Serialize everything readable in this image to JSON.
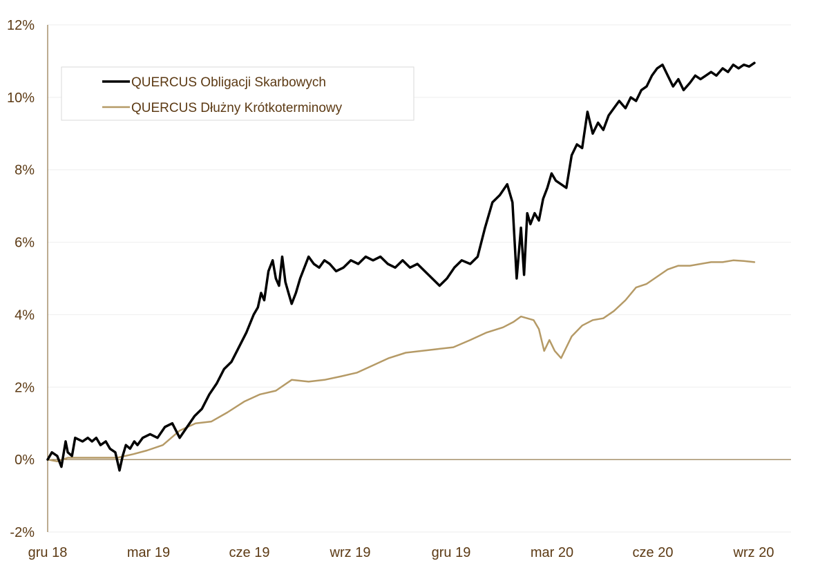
{
  "chart_data": {
    "type": "line",
    "title": "",
    "xlabel": "",
    "ylabel": "",
    "x_ticks": [
      "gru 18",
      "mar 19",
      "cze 19",
      "wrz 19",
      "gru 19",
      "mar 20",
      "cze 20",
      "wrz 20"
    ],
    "y_ticks": [
      "-2%",
      "0%",
      "2%",
      "4%",
      "6%",
      "8%",
      "10%",
      "12%"
    ],
    "ylim": [
      -2,
      12
    ],
    "x_range": [
      "2018-12-01",
      "2020-09-30"
    ],
    "grid": "horizontal",
    "legend_position": "top-left",
    "colors": {
      "axis": "#7a5a22",
      "text": "#5c3a14"
    },
    "series": [
      {
        "name": "QUERCUS Obligacji Skarbowych",
        "color": "#000000",
        "x": [
          "2018-12-01",
          "2018-12-05",
          "2018-12-10",
          "2018-12-14",
          "2018-12-18",
          "2018-12-20",
          "2018-12-24",
          "2018-12-27",
          "2019-01-03",
          "2019-01-08",
          "2019-01-12",
          "2019-01-16",
          "2019-01-20",
          "2019-01-25",
          "2019-01-29",
          "2019-02-03",
          "2019-02-07",
          "2019-02-10",
          "2019-02-13",
          "2019-02-17",
          "2019-02-21",
          "2019-02-24",
          "2019-03-01",
          "2019-03-08",
          "2019-03-15",
          "2019-03-22",
          "2019-03-29",
          "2019-04-05",
          "2019-04-12",
          "2019-04-19",
          "2019-04-26",
          "2019-05-03",
          "2019-05-10",
          "2019-05-17",
          "2019-05-24",
          "2019-05-31",
          "2019-06-07",
          "2019-06-14",
          "2019-06-18",
          "2019-06-21",
          "2019-06-24",
          "2019-06-28",
          "2019-07-02",
          "2019-07-05",
          "2019-07-08",
          "2019-07-11",
          "2019-07-14",
          "2019-07-17",
          "2019-07-20",
          "2019-07-24",
          "2019-07-28",
          "2019-08-01",
          "2019-08-05",
          "2019-08-10",
          "2019-08-15",
          "2019-08-20",
          "2019-08-25",
          "2019-08-31",
          "2019-09-07",
          "2019-09-14",
          "2019-09-21",
          "2019-09-28",
          "2019-10-05",
          "2019-10-12",
          "2019-10-19",
          "2019-10-26",
          "2019-11-02",
          "2019-11-09",
          "2019-11-16",
          "2019-11-23",
          "2019-11-30",
          "2019-12-07",
          "2019-12-14",
          "2019-12-21",
          "2019-12-28",
          "2020-01-05",
          "2020-01-12",
          "2020-01-19",
          "2020-01-26",
          "2020-02-02",
          "2020-02-09",
          "2020-02-14",
          "2020-02-18",
          "2020-02-22",
          "2020-02-25",
          "2020-02-28",
          "2020-03-02",
          "2020-03-06",
          "2020-03-10",
          "2020-03-14",
          "2020-03-18",
          "2020-03-22",
          "2020-03-26",
          "2020-03-31",
          "2020-04-05",
          "2020-04-10",
          "2020-04-15",
          "2020-04-20",
          "2020-04-25",
          "2020-04-30",
          "2020-05-05",
          "2020-05-10",
          "2020-05-15",
          "2020-05-20",
          "2020-05-25",
          "2020-05-31",
          "2020-06-05",
          "2020-06-10",
          "2020-06-15",
          "2020-06-20",
          "2020-06-25",
          "2020-06-30",
          "2020-07-05",
          "2020-07-10",
          "2020-07-15",
          "2020-07-20",
          "2020-07-25",
          "2020-07-31",
          "2020-08-05",
          "2020-08-10",
          "2020-08-15",
          "2020-08-20",
          "2020-08-25",
          "2020-08-31",
          "2020-09-05",
          "2020-09-10",
          "2020-09-15",
          "2020-09-20",
          "2020-09-25",
          "2020-09-30"
        ],
        "y": [
          0.0,
          0.2,
          0.1,
          -0.2,
          0.5,
          0.2,
          0.1,
          0.6,
          0.5,
          0.6,
          0.5,
          0.6,
          0.4,
          0.5,
          0.3,
          0.2,
          -0.3,
          0.1,
          0.4,
          0.3,
          0.5,
          0.4,
          0.6,
          0.7,
          0.6,
          0.9,
          1.0,
          0.6,
          0.9,
          1.2,
          1.4,
          1.8,
          2.1,
          2.5,
          2.7,
          3.1,
          3.5,
          4.0,
          4.2,
          4.6,
          4.4,
          5.2,
          5.5,
          5.0,
          4.8,
          5.6,
          4.9,
          4.6,
          4.3,
          4.6,
          5.0,
          5.3,
          5.6,
          5.4,
          5.3,
          5.5,
          5.4,
          5.2,
          5.3,
          5.5,
          5.4,
          5.6,
          5.5,
          5.6,
          5.4,
          5.3,
          5.5,
          5.3,
          5.4,
          5.2,
          5.0,
          4.8,
          5.0,
          5.3,
          5.5,
          5.4,
          5.6,
          6.4,
          7.1,
          7.3,
          7.6,
          7.1,
          5.0,
          6.4,
          5.1,
          6.8,
          6.5,
          6.8,
          6.6,
          7.2,
          7.5,
          7.9,
          7.7,
          7.6,
          7.5,
          8.4,
          8.7,
          8.6,
          9.6,
          9.0,
          9.3,
          9.1,
          9.5,
          9.7,
          9.9,
          9.7,
          10.0,
          9.9,
          10.2,
          10.3,
          10.6,
          10.8,
          10.9,
          10.6,
          10.3,
          10.5,
          10.2,
          10.4,
          10.6,
          10.5,
          10.6,
          10.7,
          10.6,
          10.8,
          10.7,
          10.9,
          10.8,
          10.9,
          10.85,
          10.95
        ]
      },
      {
        "name": "QUERCUS Dłużny Krótkoterminowy",
        "color": "#b59a66",
        "x": [
          "2018-12-01",
          "2018-12-10",
          "2018-12-20",
          "2019-01-05",
          "2019-01-20",
          "2019-02-05",
          "2019-02-20",
          "2019-03-05",
          "2019-03-20",
          "2019-04-05",
          "2019-04-20",
          "2019-05-05",
          "2019-05-20",
          "2019-06-05",
          "2019-06-20",
          "2019-07-05",
          "2019-07-20",
          "2019-08-05",
          "2019-08-20",
          "2019-09-05",
          "2019-09-20",
          "2019-10-05",
          "2019-10-20",
          "2019-11-05",
          "2019-11-20",
          "2019-12-05",
          "2019-12-20",
          "2020-01-05",
          "2020-01-20",
          "2020-02-05",
          "2020-02-15",
          "2020-02-22",
          "2020-02-28",
          "2020-03-05",
          "2020-03-10",
          "2020-03-15",
          "2020-03-20",
          "2020-03-25",
          "2020-03-31",
          "2020-04-10",
          "2020-04-20",
          "2020-04-30",
          "2020-05-10",
          "2020-05-20",
          "2020-05-31",
          "2020-06-10",
          "2020-06-20",
          "2020-06-30",
          "2020-07-10",
          "2020-07-20",
          "2020-07-31",
          "2020-08-10",
          "2020-08-20",
          "2020-08-31",
          "2020-09-10",
          "2020-09-20",
          "2020-09-30"
        ],
        "y": [
          0.0,
          -0.05,
          0.05,
          0.05,
          0.05,
          0.05,
          0.15,
          0.25,
          0.4,
          0.8,
          1.0,
          1.05,
          1.3,
          1.6,
          1.8,
          1.9,
          2.2,
          2.15,
          2.2,
          2.3,
          2.4,
          2.6,
          2.8,
          2.95,
          3.0,
          3.05,
          3.1,
          3.3,
          3.5,
          3.65,
          3.8,
          3.95,
          3.9,
          3.85,
          3.6,
          3.0,
          3.3,
          3.0,
          2.8,
          3.4,
          3.7,
          3.85,
          3.9,
          4.1,
          4.4,
          4.75,
          4.85,
          5.05,
          5.25,
          5.35,
          5.35,
          5.4,
          5.45,
          5.45,
          5.5,
          5.48,
          5.45
        ]
      }
    ]
  }
}
